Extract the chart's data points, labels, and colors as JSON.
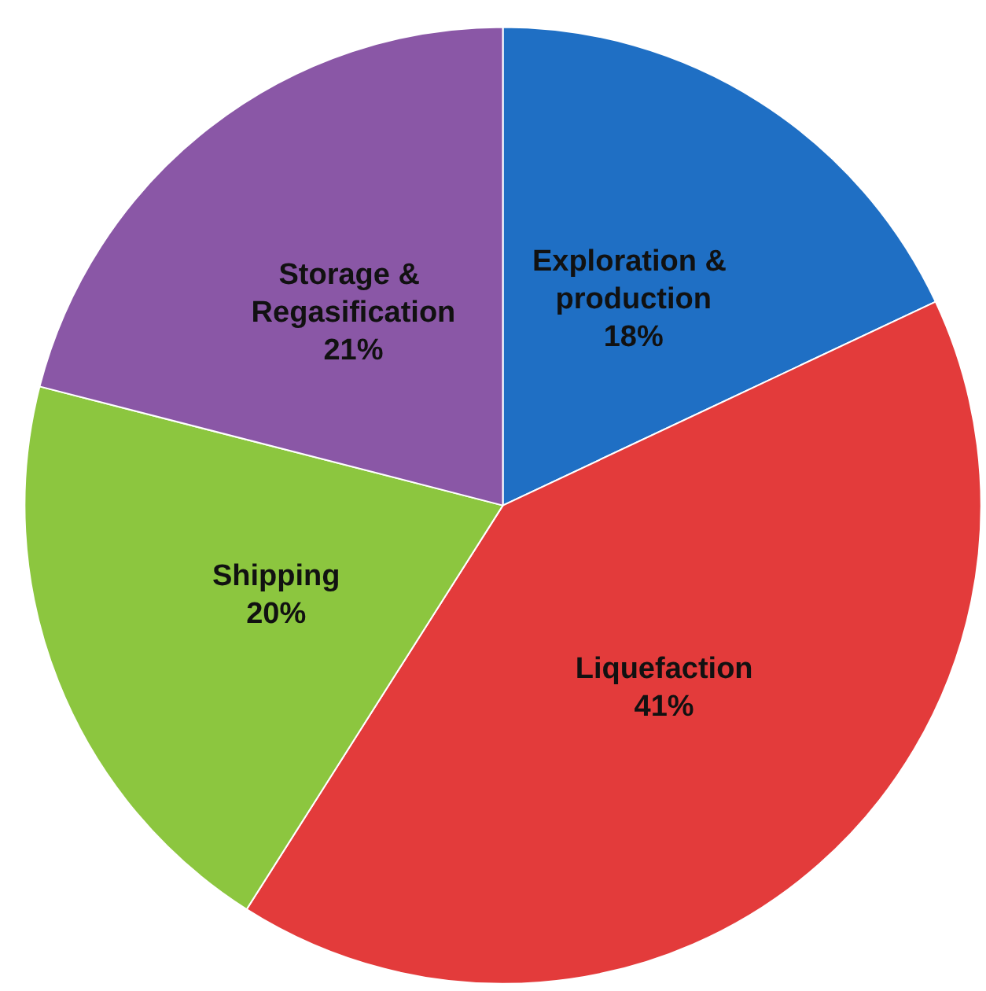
{
  "chart_data": {
    "type": "pie",
    "categories": [
      "Exploration & production",
      "Liquefaction",
      "Shipping",
      "Storage & Regasification"
    ],
    "values": [
      18,
      41,
      20,
      21
    ],
    "value_labels": [
      "18%",
      "41%",
      "20%",
      "21%"
    ],
    "colors": [
      "#1f6fc4",
      "#e33b3b",
      "#8cc63f",
      "#8a57a6"
    ]
  }
}
